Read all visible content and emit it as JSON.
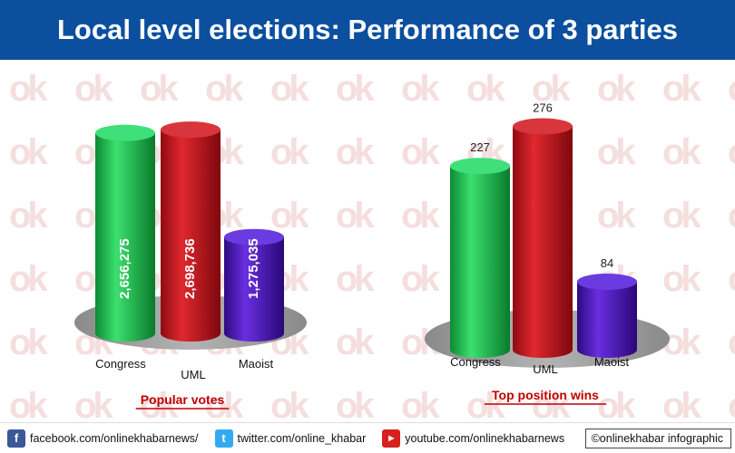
{
  "header": {
    "title": "Local level elections: Performance of 3 parties"
  },
  "chart_data": [
    {
      "type": "bar",
      "title": "Popular votes",
      "categories": [
        "Congress",
        "UML",
        "Maoist"
      ],
      "values": [
        2656275,
        2698736,
        1275035
      ],
      "labels": [
        "2,656,275",
        "2,698,736",
        "1,275,035"
      ],
      "ylim": [
        0,
        3000000
      ]
    },
    {
      "type": "bar",
      "title": "Top position wins",
      "categories": [
        "Congress",
        "UML",
        "Maoist"
      ],
      "values": [
        227,
        276,
        84
      ],
      "labels": [
        "227",
        "276",
        "84"
      ],
      "ylim": [
        0,
        300
      ]
    }
  ],
  "colors": {
    "header_bg": "#0b4f9e",
    "congress": "#1fbf4f",
    "uml": "#c8141b",
    "maoist": "#4a12b8",
    "caption": "#c00000"
  },
  "footer": {
    "facebook": "facebook.com/onlinekhabarnews/",
    "twitter": "twitter.com/online_khabar",
    "youtube": "youtube.com/onlinekhabarnews",
    "credit": "©onlinekhabar infographic",
    "icons": [
      "facebook-icon",
      "twitter-icon",
      "youtube-icon"
    ]
  }
}
